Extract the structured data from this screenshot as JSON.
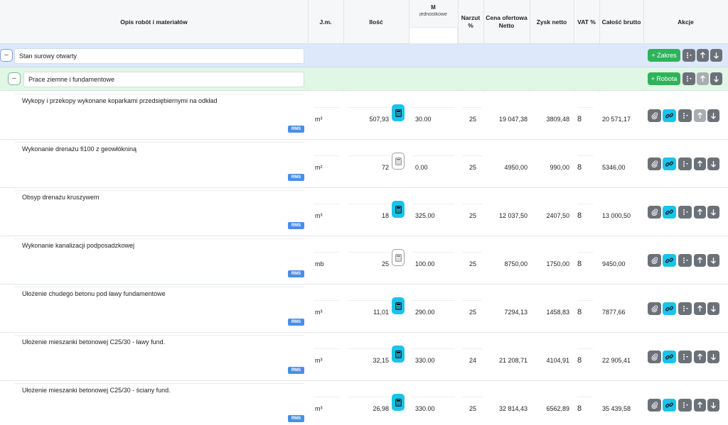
{
  "header": {
    "desc": "Opis robót i materiałów",
    "unit": "J.m.",
    "qty": "Ilość",
    "price_title": "M",
    "price_sub": "jednostkowe",
    "markup": "Narzut %",
    "offer_net": "Cena ofertowa Netto",
    "profit_net": "Zysk netto",
    "vat": "VAT %",
    "gross_total": "Całość brutto",
    "actions": "Akcje"
  },
  "scope": {
    "name": "Stan surowy otwarty",
    "add_label": "+ Zakres",
    "toggle": "−"
  },
  "work": {
    "name": "Prace ziemne i fundamentowe",
    "add_label": "+ Robota",
    "toggle": "−"
  },
  "badge": "RMS",
  "rows": [
    {
      "desc": "Wykopy i przekopy wykonane koparkami przedsiębiernymi na odkład",
      "unit": "m³",
      "qty": "507,93",
      "calc": "on",
      "price": "30.00",
      "markup": "25",
      "net": "19 047,38",
      "profit": "3809,48",
      "vat": "8",
      "gross": "20 571,17",
      "up_disabled": true
    },
    {
      "desc": "Wykonanie drenażu fi100 z geowłókniną",
      "unit": "m²",
      "qty": "72",
      "calc": "off",
      "price": "0.00",
      "markup": "25",
      "net": "4950,00",
      "profit": "990,00",
      "vat": "8",
      "gross": "5346,00",
      "up_disabled": false
    },
    {
      "desc": "Obsyp drenażu kruszywem",
      "unit": "m³",
      "qty": "18",
      "calc": "on",
      "price": "325.00",
      "markup": "25",
      "net": "12 037,50",
      "profit": "2407,50",
      "vat": "8",
      "gross": "13 000,50",
      "up_disabled": false
    },
    {
      "desc": "Wykonanie kanalizacji podposadzkowej",
      "unit": "mb",
      "qty": "25",
      "calc": "off",
      "price": "100.00",
      "markup": "25",
      "net": "8750,00",
      "profit": "1750,00",
      "vat": "8",
      "gross": "9450,00",
      "up_disabled": false
    },
    {
      "desc": "Ułożenie chudego betonu pod ławy fundamentowe",
      "unit": "m³",
      "qty": "11,01",
      "calc": "on",
      "price": "290.00",
      "markup": "25",
      "net": "7294,13",
      "profit": "1458,83",
      "vat": "8",
      "gross": "7877,66",
      "up_disabled": false
    },
    {
      "desc": "Ułożenie mieszanki betonowej C25/30 - ławy fund.",
      "unit": "m³",
      "qty": "32,15",
      "calc": "on",
      "price": "330.00",
      "markup": "24",
      "net": "21 208,71",
      "profit": "4104,91",
      "vat": "8",
      "gross": "22 905,41",
      "up_disabled": false
    },
    {
      "desc": "Ułożenie mieszanki betonowej C25/30 - ściany fund.",
      "unit": "m³",
      "qty": "26,98",
      "calc": "on",
      "price": "330.00",
      "markup": "25",
      "net": "32 814,43",
      "profit": "6562,89",
      "vat": "8",
      "gross": "35 439,58",
      "up_disabled": false
    }
  ],
  "icons": {
    "attach": "paperclip-icon",
    "link": "link-icon",
    "menu": "vertical-dots-icon",
    "up": "arrow-up-icon",
    "down": "arrow-down-icon",
    "calc": "calculator-icon"
  },
  "colors": {
    "cyan": "#1ac3ea",
    "grey": "#6b7178",
    "green": "#2fb35a",
    "rms": "#4a8ee6"
  }
}
